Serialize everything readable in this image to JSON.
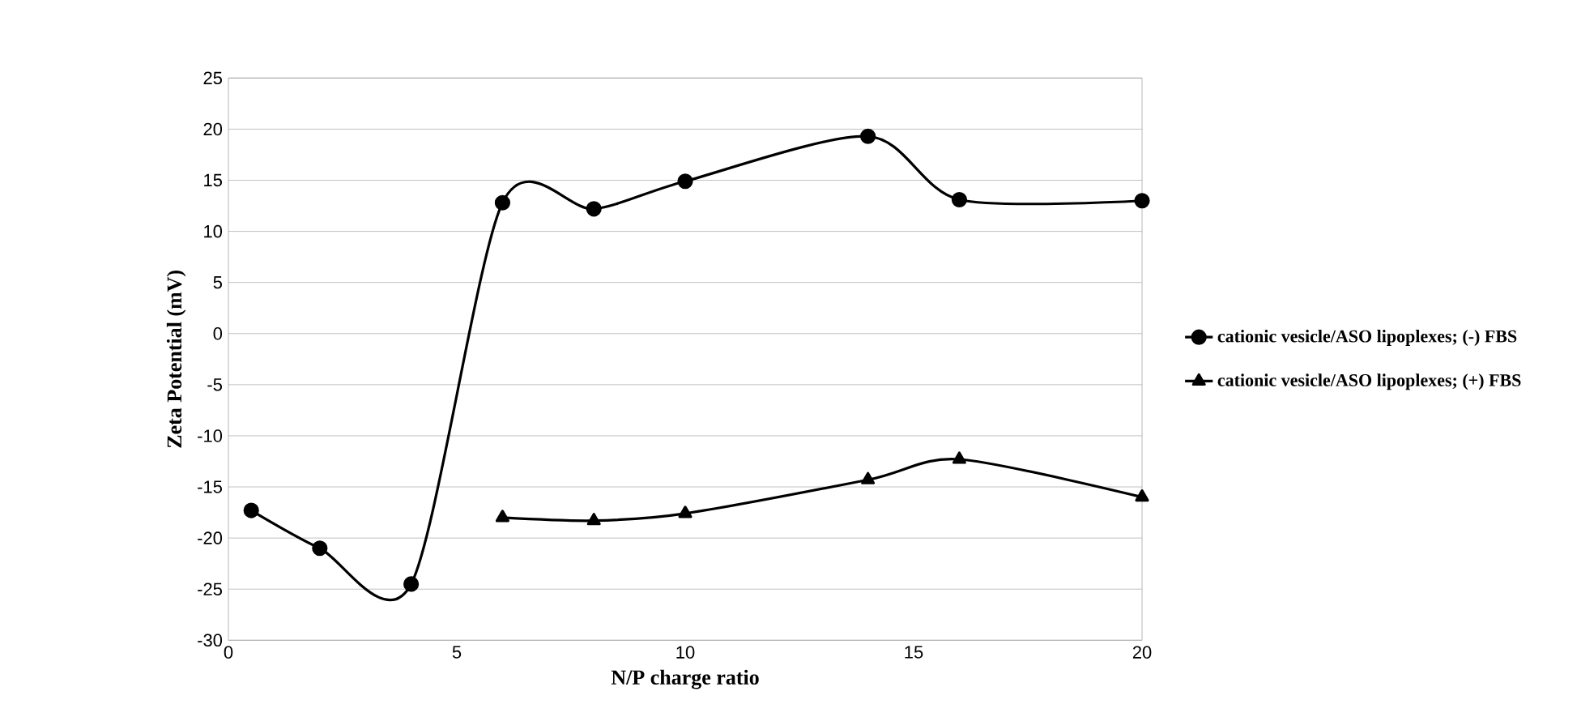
{
  "chart_data": {
    "type": "line",
    "xlabel": "N/P charge ratio",
    "ylabel": "Zeta Potential (mV)",
    "xlim": [
      0,
      20
    ],
    "xticks": [
      0,
      5,
      10,
      15,
      20
    ],
    "ylim": [
      -30,
      25
    ],
    "yticks": [
      -30,
      -25,
      -20,
      -15,
      -10,
      -5,
      0,
      5,
      10,
      15,
      20,
      25
    ],
    "grid": "y",
    "legend": "right",
    "series": [
      {
        "name": "cationic vesicle/ASO lipoplexes; (-) FBS",
        "color": "#000000",
        "marker": "circle",
        "x": [
          0.5,
          2,
          4,
          6,
          8,
          10,
          14,
          16,
          20
        ],
        "values": [
          -17.3,
          -21,
          -24.5,
          12.8,
          12.2,
          14.9,
          19.3,
          13.1,
          13
        ]
      },
      {
        "name": "cationic vesicle/ASO lipoplexes; (+) FBS",
        "color": "#000000",
        "marker": "triangle",
        "x": [
          6,
          8,
          10,
          14,
          16,
          20
        ],
        "values": [
          -18,
          -18.3,
          -17.6,
          -14.3,
          -12.3,
          -16
        ]
      }
    ]
  }
}
